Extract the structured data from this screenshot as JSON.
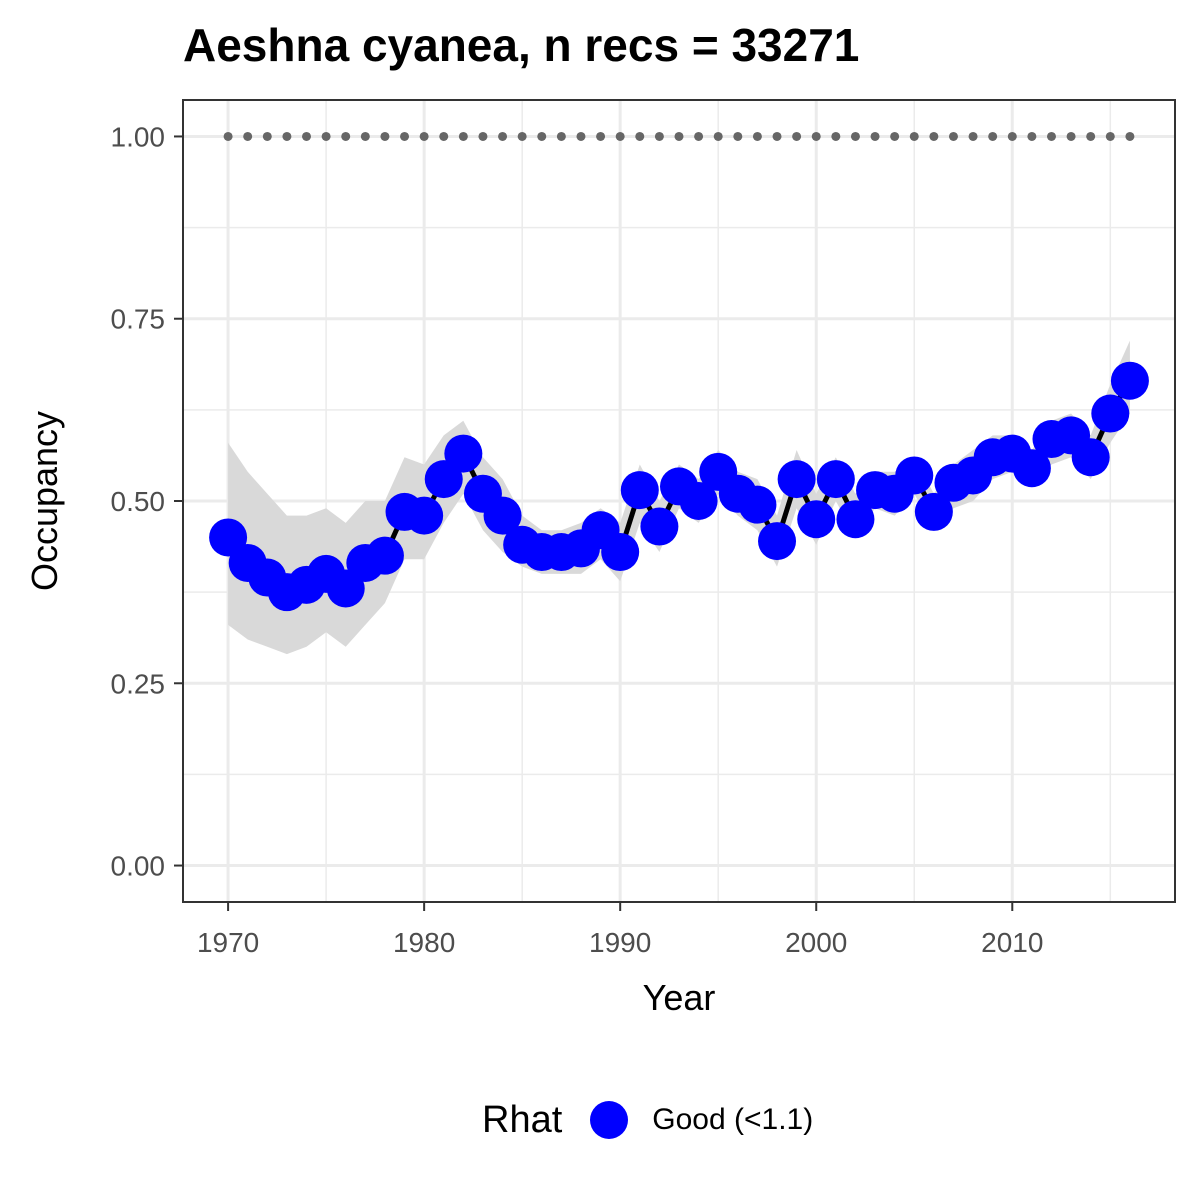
{
  "chart_data": {
    "type": "line",
    "title": "Aeshna cyanea, n recs = 33271",
    "xlabel": "Year",
    "ylabel": "Occupancy",
    "xlim": [
      1967.7,
      2018.3
    ],
    "ylim": [
      -0.05,
      1.05
    ],
    "x_ticks": [
      1970,
      1980,
      1990,
      2000,
      2010
    ],
    "x_tick_labels": [
      "1970",
      "1980",
      "1990",
      "2000",
      "2010"
    ],
    "y_ticks": [
      0,
      0.25,
      0.5,
      0.75,
      1.0
    ],
    "y_tick_labels": [
      "0.00",
      "0.25",
      "0.50",
      "0.75",
      "1.00"
    ],
    "grid": true,
    "legend_position": "bottom",
    "colors": {
      "points": "#0000ff",
      "line": "#000000",
      "ribbon": "#d9d9d9",
      "reference_dots": "#666666",
      "grid": "#ebebeb",
      "panel_border": "#333333"
    },
    "reference_line": {
      "y": 1.0,
      "style": "dotted"
    },
    "x": [
      1970,
      1971,
      1972,
      1973,
      1974,
      1975,
      1976,
      1977,
      1978,
      1979,
      1980,
      1981,
      1982,
      1983,
      1984,
      1985,
      1986,
      1987,
      1988,
      1989,
      1990,
      1991,
      1992,
      1993,
      1994,
      1995,
      1996,
      1997,
      1998,
      1999,
      2000,
      2001,
      2002,
      2003,
      2004,
      2005,
      2006,
      2007,
      2008,
      2009,
      2010,
      2011,
      2012,
      2013,
      2014,
      2015,
      2016
    ],
    "series": [
      {
        "values": [
          0.45,
          0.415,
          0.395,
          0.375,
          0.385,
          0.4,
          0.38,
          0.415,
          0.425,
          0.485,
          0.48,
          0.53,
          0.565,
          0.51,
          0.48,
          0.44,
          0.43,
          0.43,
          0.435,
          0.46,
          0.43,
          0.515,
          0.465,
          0.52,
          0.5,
          0.54,
          0.51,
          0.495,
          0.445,
          0.53,
          0.475,
          0.53,
          0.475,
          0.515,
          0.51,
          0.535,
          0.485,
          0.525,
          0.535,
          0.56,
          0.565,
          0.545,
          0.585,
          0.59,
          0.56,
          0.62,
          0.665
        ],
        "lower": [
          0.33,
          0.31,
          0.3,
          0.29,
          0.3,
          0.32,
          0.3,
          0.33,
          0.36,
          0.42,
          0.42,
          0.47,
          0.51,
          0.46,
          0.43,
          0.41,
          0.4,
          0.4,
          0.4,
          0.42,
          0.39,
          0.47,
          0.43,
          0.49,
          0.47,
          0.51,
          0.48,
          0.46,
          0.41,
          0.49,
          0.44,
          0.5,
          0.45,
          0.49,
          0.48,
          0.51,
          0.46,
          0.49,
          0.5,
          0.53,
          0.54,
          0.52,
          0.55,
          0.56,
          0.53,
          0.58,
          0.62
        ],
        "upper": [
          0.58,
          0.54,
          0.51,
          0.48,
          0.48,
          0.49,
          0.47,
          0.5,
          0.5,
          0.56,
          0.55,
          0.59,
          0.61,
          0.56,
          0.53,
          0.48,
          0.46,
          0.46,
          0.47,
          0.49,
          0.47,
          0.55,
          0.5,
          0.55,
          0.53,
          0.57,
          0.54,
          0.53,
          0.48,
          0.57,
          0.51,
          0.56,
          0.51,
          0.54,
          0.54,
          0.56,
          0.51,
          0.55,
          0.57,
          0.59,
          0.59,
          0.57,
          0.61,
          0.62,
          0.59,
          0.66,
          0.72
        ]
      }
    ]
  },
  "legend": {
    "title": "Rhat",
    "items": [
      {
        "label": "Good (<1.1)",
        "color": "#0000ff"
      }
    ]
  }
}
